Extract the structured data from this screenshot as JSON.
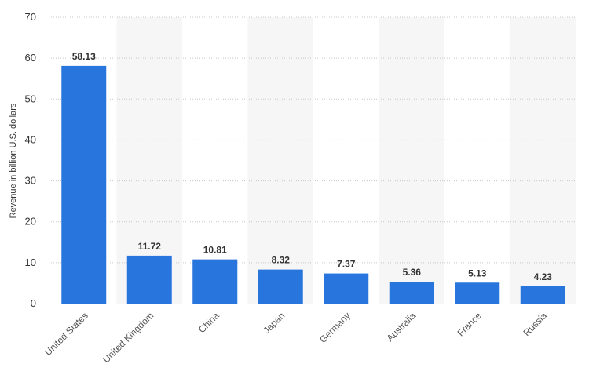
{
  "chart_data": {
    "type": "bar",
    "categories": [
      "United States",
      "United Kingdom",
      "China",
      "Japan",
      "Germany",
      "Australia",
      "France",
      "Russia"
    ],
    "values": [
      58.13,
      11.72,
      10.81,
      8.32,
      7.37,
      5.36,
      5.13,
      4.23
    ],
    "value_labels": [
      "58.13",
      "11.72",
      "10.81",
      "8.32",
      "7.37",
      "5.36",
      "5.13",
      "4.23"
    ],
    "title": "",
    "xlabel": "",
    "ylabel": "Revenue in billion U.S. dollars",
    "ylim": [
      0,
      70
    ],
    "yticks": [
      0,
      10,
      20,
      30,
      40,
      50,
      60,
      70
    ],
    "grid": true,
    "colors": {
      "bar": "#2876dd",
      "band": "#f6f6f6",
      "grid": "#c8c8c8",
      "axis": "#333333"
    }
  }
}
